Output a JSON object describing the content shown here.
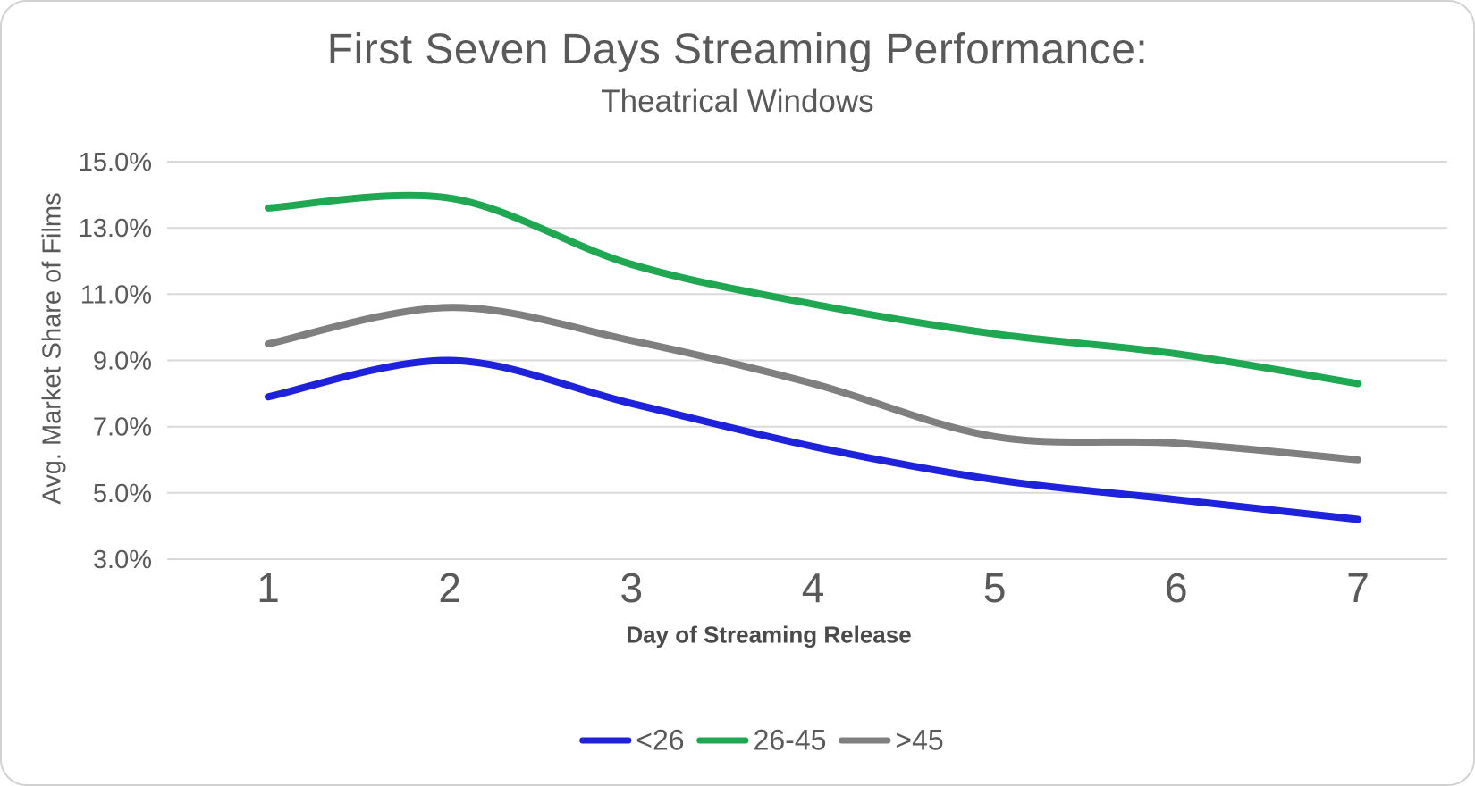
{
  "chart_data": {
    "type": "line",
    "title": "First Seven Days Streaming Performance:",
    "subtitle": "Theatrical Windows",
    "xlabel": "Day of Streaming Release",
    "ylabel": "Avg. Market Share of Films",
    "unit": "%",
    "x": [
      1,
      2,
      3,
      4,
      5,
      6,
      7
    ],
    "x_tick_labels": [
      "1",
      "2",
      "3",
      "4",
      "5",
      "6",
      "7"
    ],
    "y_ticks": [
      "15.0%",
      "13.0%",
      "11.0%",
      "9.0%",
      "7.0%",
      "5.0%",
      "3.0%"
    ],
    "ylim": [
      3.0,
      15.0
    ],
    "y_tick_step": 2.0,
    "grid": true,
    "smooth": true,
    "legend_position": "bottom",
    "series": [
      {
        "name": "<26",
        "color": "#1E22DA",
        "values": [
          7.9,
          9.0,
          7.7,
          6.4,
          5.4,
          4.8,
          4.2
        ]
      },
      {
        "name": "26-45",
        "color": "#1FA751",
        "values": [
          13.6,
          13.9,
          11.9,
          10.7,
          9.8,
          9.2,
          8.3
        ]
      },
      {
        "name": ">45",
        "color": "#7F7F7F",
        "values": [
          9.5,
          10.6,
          9.6,
          8.3,
          6.7,
          6.5,
          6.0
        ]
      }
    ],
    "colors": {
      "gridline": "#D9D9D9",
      "tick_text": "#595959",
      "title_text": "#595959",
      "axis_title_text": "#4A4A4A",
      "card_border": "#D2D2D2",
      "background": "#FFFFFF"
    }
  }
}
